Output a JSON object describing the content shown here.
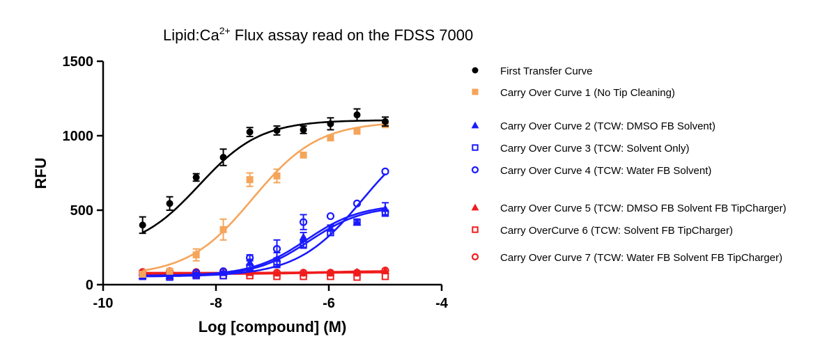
{
  "chart_data": {
    "type": "scatter",
    "title": "Lipid:Ca",
    "title_superscript": "2+",
    "title_rest": " Flux assay read on the FDSS 7000",
    "xlabel": "Log [compound] (M)",
    "ylabel": "RFU",
    "xlim": [
      -10,
      -4
    ],
    "ylim": [
      0,
      1500
    ],
    "xticks": [
      -10,
      -8,
      -6,
      -4
    ],
    "xtick_labels": [
      "-10",
      "-8",
      "-6",
      "-4"
    ],
    "yticks": [
      0,
      500,
      1000,
      1500
    ],
    "ytick_labels": [
      "0",
      "500",
      "1000",
      "1500"
    ],
    "grid": false,
    "legend_position": "right",
    "x": [
      -9.3,
      -8.82,
      -8.35,
      -7.87,
      -7.4,
      -6.92,
      -6.45,
      -5.97,
      -5.5,
      -5.0
    ],
    "series": [
      {
        "name": "First Transfer Curve",
        "color": "#000000",
        "marker": "circle-filled",
        "values": [
          400,
          545,
          720,
          855,
          1025,
          1035,
          1040,
          1080,
          1140,
          1095
        ],
        "errors": [
          55,
          45,
          25,
          55,
          30,
          30,
          25,
          40,
          40,
          30
        ],
        "fit": {
          "bottom": 230,
          "top": 1105,
          "logec50": -8.3,
          "hill": 0.8
        }
      },
      {
        "name": "Carry Over Curve 1 (No Tip Cleaning)",
        "color": "#f5a55a",
        "marker": "square-filled",
        "values": [
          70,
          90,
          200,
          370,
          705,
          730,
          870,
          985,
          1030,
          1075
        ],
        "errors": [
          0,
          0,
          40,
          70,
          45,
          45,
          15,
          15,
          15,
          20
        ],
        "fit": {
          "bottom": 60,
          "top": 1095,
          "logec50": -7.35,
          "hill": 0.75
        }
      },
      {
        "name": "Carry Over Curve 2 (TCW: DMSO FB Solvent)",
        "color": "#1a1aff",
        "marker": "triangle-filled",
        "values": [
          60,
          60,
          70,
          80,
          150,
          175,
          320,
          380,
          420,
          510
        ],
        "errors": [
          0,
          0,
          0,
          10,
          20,
          40,
          30,
          20,
          20,
          40
        ],
        "fit": {
          "bottom": 60,
          "top": 540,
          "logec50": -6.4,
          "hill": 0.9
        }
      },
      {
        "name": "Carry Over Curve 3 (TCW: Solvent Only)",
        "color": "#1a1aff",
        "marker": "square-open",
        "values": [
          55,
          50,
          60,
          60,
          115,
          140,
          270,
          350,
          420,
          480
        ],
        "errors": [
          0,
          0,
          0,
          0,
          15,
          25,
          25,
          20,
          15,
          20
        ],
        "fit": {
          "bottom": 55,
          "top": 530,
          "logec50": -6.35,
          "hill": 0.9
        }
      },
      {
        "name": "Carry Over Curve 4 (TCW: Water FB Solvent)",
        "color": "#1a1aff",
        "marker": "circle-open",
        "values": [
          65,
          65,
          80,
          90,
          180,
          240,
          420,
          460,
          545,
          760
        ],
        "errors": [
          0,
          0,
          0,
          0,
          20,
          60,
          50,
          0,
          0,
          0
        ],
        "fit": {
          "bottom": 55,
          "top": 1090,
          "logec50": -5.4,
          "hill": 0.75
        }
      },
      {
        "name": "Carry Over Curve 5 (TCW: DMSO FB Solvent FB TipCharger)",
        "color": "#f01c1c",
        "marker": "triangle-filled",
        "values": [
          80,
          80,
          80,
          80,
          80,
          80,
          80,
          80,
          85,
          95
        ],
        "errors": [
          0,
          0,
          0,
          0,
          0,
          0,
          0,
          0,
          0,
          0
        ],
        "fit": {
          "bottom": 78,
          "top": 92,
          "logec50": -6.0,
          "hill": 1.0
        }
      },
      {
        "name": "Carry OverCurve 6 (TCW: Solvent FB TipCharger)",
        "color": "#f01c1c",
        "marker": "square-open",
        "values": [
          75,
          55,
          65,
          60,
          60,
          55,
          55,
          55,
          50,
          55
        ],
        "errors": [
          0,
          0,
          0,
          0,
          0,
          0,
          0,
          0,
          0,
          0
        ],
        "fit": {
          "bottom": 72,
          "top": 82,
          "logec50": -6.5,
          "hill": 1.0
        }
      },
      {
        "name": "Carry Over Curve 7 (TCW: Water FB Solvent FB TipCharger)",
        "color": "#f01c1c",
        "marker": "circle-open",
        "values": [
          85,
          90,
          85,
          85,
          85,
          80,
          80,
          80,
          80,
          95
        ],
        "errors": [
          0,
          0,
          0,
          0,
          0,
          0,
          0,
          0,
          0,
          0
        ],
        "fit": {
          "bottom": 80,
          "top": 88,
          "logec50": -6.0,
          "hill": 1.0
        }
      }
    ]
  }
}
